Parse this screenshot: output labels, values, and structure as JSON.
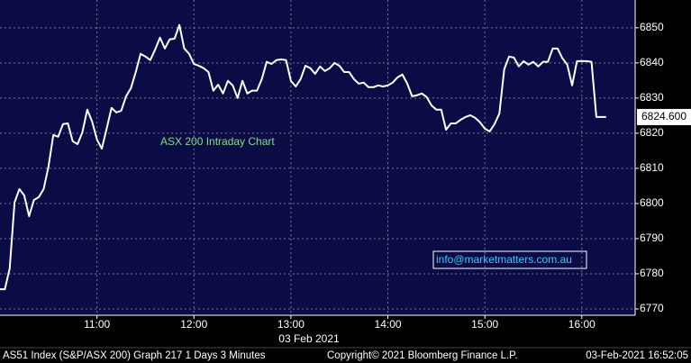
{
  "chart_data": {
    "type": "line",
    "annotation": "ASX 200 Intraday Chart",
    "contact": "info@marketmatters.com.au",
    "date_label": "03 Feb 2021",
    "footer": {
      "left": "AS51 Index (S&P/ASX 200) Graph 217 1 Days 3 Minutes",
      "center": "Copyright© 2021 Bloomberg Finance L.P.",
      "right": "03-Feb-2021 16:52:05"
    },
    "x": [
      "10:00",
      "10:03",
      "10:06",
      "10:09",
      "10:12",
      "10:15",
      "10:18",
      "10:21",
      "10:24",
      "10:27",
      "10:30",
      "10:33",
      "10:36",
      "10:39",
      "10:42",
      "10:45",
      "10:48",
      "10:51",
      "10:54",
      "10:57",
      "11:00",
      "11:03",
      "11:06",
      "11:09",
      "11:12",
      "11:15",
      "11:18",
      "11:21",
      "11:24",
      "11:27",
      "11:30",
      "11:33",
      "11:36",
      "11:39",
      "11:42",
      "11:45",
      "11:48",
      "11:51",
      "11:54",
      "11:57",
      "12:00",
      "12:03",
      "12:06",
      "12:09",
      "12:12",
      "12:15",
      "12:18",
      "12:21",
      "12:24",
      "12:27",
      "12:30",
      "12:33",
      "12:36",
      "12:39",
      "12:42",
      "12:45",
      "12:48",
      "12:51",
      "12:54",
      "12:57",
      "13:00",
      "13:03",
      "13:06",
      "13:09",
      "13:12",
      "13:15",
      "13:18",
      "13:21",
      "13:24",
      "13:27",
      "13:30",
      "13:33",
      "13:36",
      "13:39",
      "13:42",
      "13:45",
      "13:48",
      "13:51",
      "13:54",
      "13:57",
      "14:00",
      "14:03",
      "14:06",
      "14:09",
      "14:12",
      "14:15",
      "14:18",
      "14:21",
      "14:24",
      "14:27",
      "14:30",
      "14:33",
      "14:36",
      "14:39",
      "14:42",
      "14:45",
      "14:48",
      "14:51",
      "14:54",
      "14:57",
      "15:00",
      "15:03",
      "15:06",
      "15:09",
      "15:12",
      "15:15",
      "15:18",
      "15:21",
      "15:24",
      "15:27",
      "15:30",
      "15:33",
      "15:36",
      "15:39",
      "15:42",
      "15:45",
      "15:48",
      "15:51",
      "15:54",
      "15:57",
      "16:00",
      "16:03",
      "16:06",
      "16:09",
      "16:12",
      "16:15"
    ],
    "series": [
      {
        "name": "AS51 Index",
        "color": "#ffffff",
        "values": [
          6775.6,
          6775.6,
          6781.5,
          6800.3,
          6804.1,
          6802.3,
          6796.4,
          6801,
          6801.8,
          6804.1,
          6810.5,
          6819.5,
          6819,
          6822.6,
          6822.8,
          6817.7,
          6816.9,
          6820.3,
          6826.7,
          6823.3,
          6818.2,
          6815.6,
          6821.3,
          6827.2,
          6825.9,
          6826.4,
          6830.5,
          6832.8,
          6837.4,
          6842.6,
          6841.8,
          6840.8,
          6843.8,
          6847.2,
          6844.1,
          6846.7,
          6846.9,
          6850.8,
          6844.1,
          6842.6,
          6839.7,
          6839.2,
          6838.5,
          6837.4,
          6832.1,
          6833.8,
          6831.3,
          6834.9,
          6833.6,
          6830,
          6834.9,
          6831.3,
          6832.1,
          6832.1,
          6835.4,
          6840.3,
          6839.7,
          6840.8,
          6841,
          6840.8,
          6834.9,
          6833.3,
          6835.4,
          6839.2,
          6838.5,
          6836.9,
          6839,
          6837.7,
          6838.5,
          6840,
          6839.2,
          6837.4,
          6837.4,
          6835.4,
          6834.1,
          6834.4,
          6833.1,
          6833.1,
          6833.6,
          6833.3,
          6833.6,
          6834.4,
          6835.9,
          6836.7,
          6834.1,
          6830.5,
          6830.8,
          6831.3,
          6830.3,
          6827.9,
          6826.7,
          6826.7,
          6821,
          6822.8,
          6822.8,
          6823.8,
          6824.6,
          6825.1,
          6824.4,
          6823.1,
          6821.3,
          6820.5,
          6822.6,
          6825.6,
          6838.2,
          6841.8,
          6841.5,
          6839,
          6840.5,
          6839.5,
          6840.3,
          6839,
          6840.3,
          6840.3,
          6844.1,
          6844.1,
          6841.3,
          6839.5,
          6833.6,
          6840.5,
          6840.5,
          6840.5,
          6840.3,
          6824.6,
          6824.6,
          6824.6
        ]
      }
    ],
    "last_label": {
      "value": 6824.6,
      "label": "6824.600"
    },
    "xlim": [
      "10:00",
      "16:33"
    ],
    "xticks": [
      "11:00",
      "12:00",
      "13:00",
      "14:00",
      "15:00",
      "16:00"
    ],
    "ylim": [
      6768.2,
      6857.9
    ],
    "yticks": [
      6770,
      6780,
      6790,
      6800,
      6810,
      6820,
      6830,
      6840,
      6850
    ],
    "grid": true,
    "background": "#0b0b45"
  }
}
